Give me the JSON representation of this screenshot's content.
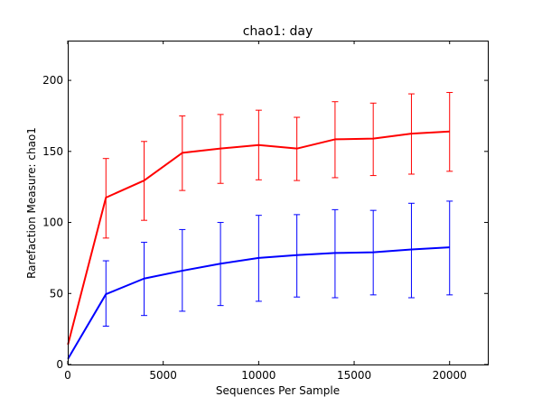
{
  "chart_data": {
    "type": "line",
    "title": "chao1: day",
    "xlabel": "Sequences Per Sample",
    "ylabel": "Rarefaction Measure: chao1",
    "xlim": [
      0,
      22000
    ],
    "ylim": [
      0,
      228
    ],
    "xticks": [
      0,
      5000,
      10000,
      15000,
      20000
    ],
    "yticks": [
      0,
      50,
      100,
      150,
      200
    ],
    "grid": false,
    "legend": "none",
    "x": [
      10,
      2000,
      4000,
      6000,
      8000,
      10000,
      12000,
      14000,
      16000,
      18000,
      20000
    ],
    "series": [
      {
        "color": "#ff0000",
        "values": [
          14,
          117.5,
          129.5,
          149,
          152,
          154.5,
          152,
          158.5,
          159,
          162.5,
          164
        ],
        "err_upper": [
          14,
          145,
          157,
          175,
          176,
          179,
          174,
          185,
          184,
          190.5,
          191.5
        ],
        "err_lower": [
          14,
          89,
          101.5,
          122.5,
          127.5,
          130,
          129.5,
          131.5,
          133,
          134,
          136
        ]
      },
      {
        "color": "#0000ff",
        "values": [
          4,
          49.5,
          60.5,
          66,
          71,
          75,
          77,
          78.5,
          79,
          81,
          82.5
        ],
        "err_upper": [
          4,
          73,
          86,
          95,
          100,
          105,
          105.5,
          109,
          108.5,
          113.5,
          115
        ],
        "err_lower": [
          4,
          27,
          34.5,
          37.5,
          41.5,
          44.5,
          47.5,
          47,
          49,
          47,
          49
        ]
      }
    ]
  }
}
